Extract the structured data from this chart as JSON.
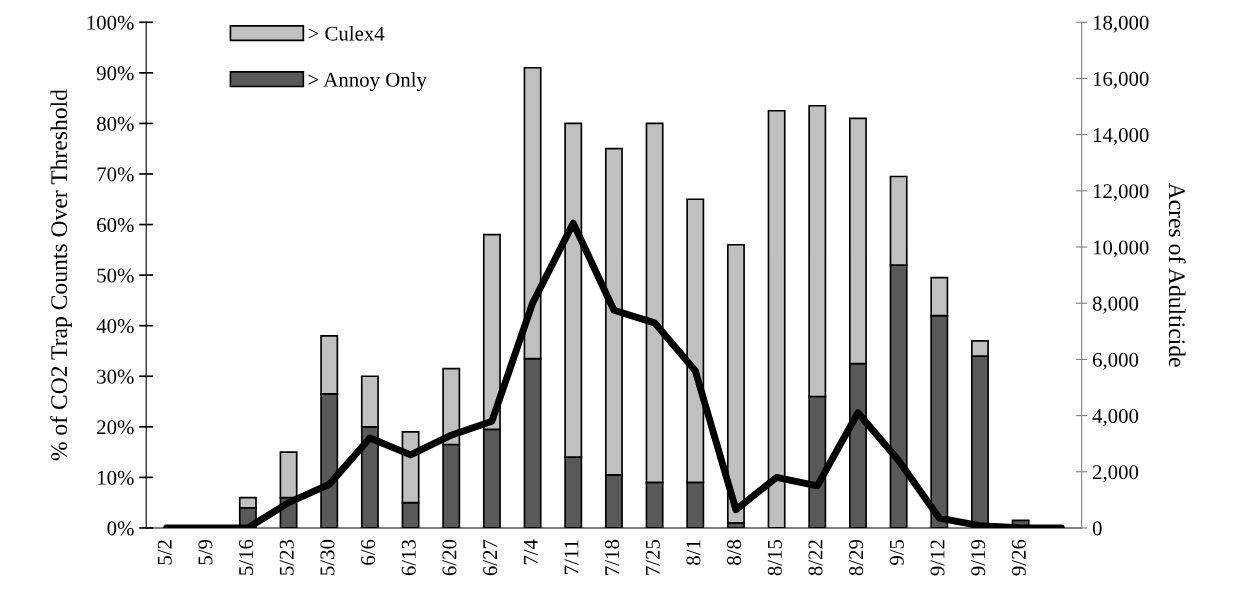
{
  "chart_data": {
    "type": "bar",
    "stacked": true,
    "ylabel": "% of CO2 Trap Counts Over Threshold",
    "y2label": "Acres of Adulticide",
    "categories": [
      "5/2",
      "5/9",
      "5/16",
      "5/23",
      "5/30",
      "6/6",
      "6/13",
      "6/20",
      "6/27",
      "7/4",
      "7/11",
      "7/18",
      "7/25",
      "8/1",
      "8/8",
      "8/15",
      "8/22",
      "8/29",
      "9/5",
      "9/12",
      "9/19",
      "9/26",
      null
    ],
    "series": [
      {
        "name": "> Annoy Only",
        "color": "#595959",
        "values": [
          0,
          0,
          4,
          6,
          26.5,
          20,
          5,
          16.5,
          19.5,
          33.5,
          14,
          10.5,
          9,
          9,
          1,
          0,
          26,
          32.5,
          52,
          42,
          34,
          1.5,
          0
        ]
      },
      {
        "name": "> Culex4",
        "color": "#c0c0c0",
        "values": [
          0,
          0,
          2,
          9,
          11.5,
          10,
          14,
          15,
          38.5,
          57.5,
          66,
          64.5,
          71,
          56,
          55,
          82.5,
          57.5,
          48.5,
          17.5,
          7.5,
          3,
          0,
          0
        ]
      },
      {
        "type": "line",
        "axis": "y2",
        "color": "#000000",
        "values": [
          0,
          0,
          0,
          900,
          1550,
          3200,
          2600,
          3300,
          3800,
          8000,
          10850,
          7750,
          7300,
          5600,
          650,
          1800,
          1500,
          4100,
          2400,
          350,
          80,
          0,
          0
        ]
      }
    ],
    "ylim": [
      0,
      100
    ],
    "yticks": [
      {
        "value": 0,
        "label": "0%"
      },
      {
        "value": 10,
        "label": "10%"
      },
      {
        "value": 20,
        "label": "20%"
      },
      {
        "value": 30,
        "label": "30%"
      },
      {
        "value": 40,
        "label": "40%"
      },
      {
        "value": 50,
        "label": "50%"
      },
      {
        "value": 60,
        "label": "60%"
      },
      {
        "value": 70,
        "label": "70%"
      },
      {
        "value": 80,
        "label": "80%"
      },
      {
        "value": 90,
        "label": "90%"
      },
      {
        "value": 100,
        "label": "100%"
      }
    ],
    "y2lim": [
      0,
      18000
    ],
    "y2ticks": [
      0,
      {
        "value": 2000,
        "label": "2,000"
      },
      {
        "value": 4000,
        "label": "4,000"
      },
      {
        "value": 6000,
        "label": "6,000"
      },
      {
        "value": 8000,
        "label": "8,000"
      },
      {
        "value": 10000,
        "label": "10,000"
      },
      {
        "value": 12000,
        "label": "12,000"
      },
      {
        "value": 14000,
        "label": "14,000"
      },
      {
        "value": 16000,
        "label": "16,000"
      },
      {
        "value": 18000,
        "label": "18,000"
      }
    ],
    "legend": "top left",
    "grid": false
  }
}
